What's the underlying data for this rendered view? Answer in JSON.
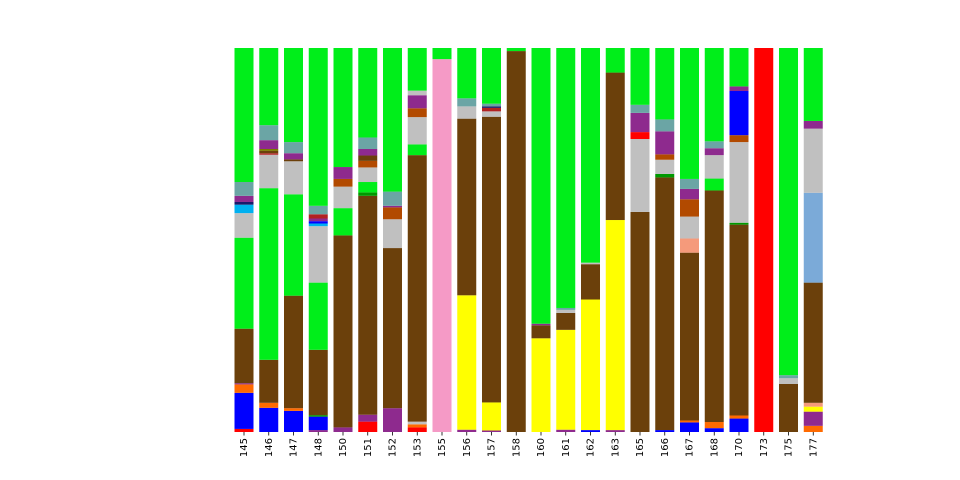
{
  "palette": {
    "lime": "#00EE1A",
    "brown": "#6B400B",
    "blue": "#0000FF",
    "yellow": "#FFFF00",
    "red": "#FF0000",
    "orange": "#FF6A00",
    "purple": "#8E2A8E",
    "silver": "#C0C0C0",
    "teal": "#6BA5A5",
    "rust": "#B24A00",
    "dkred": "#B22222",
    "salmon": "#F59A7B",
    "sky": "#7BAAD8",
    "pink": "#F59AC6",
    "olive": "#7A7A00",
    "cyan": "#00B0F0",
    "navy": "#1A1A6B",
    "green2": "#009900",
    "black": "#222222"
  },
  "chart_data": {
    "type": "bar",
    "stacked": true,
    "normalized": true,
    "ylim": [
      0,
      1
    ],
    "grid": false,
    "legend": "none",
    "title": "",
    "xlabel": "",
    "ylabel": "",
    "categories": [
      "145",
      "146",
      "147",
      "148",
      "150",
      "151",
      "152",
      "153",
      "155",
      "156",
      "157",
      "158",
      "160",
      "161",
      "162",
      "163",
      "165",
      "166",
      "167",
      "168",
      "170",
      "173",
      "175",
      "177"
    ],
    "stacks": [
      [
        [
          "red",
          0.008
        ],
        [
          "blue",
          0.094
        ],
        [
          "orange",
          0.022
        ],
        [
          "purple",
          0.003
        ],
        [
          "brown",
          0.142
        ],
        [
          "lime",
          0.237
        ],
        [
          "silver",
          0.064
        ],
        [
          "cyan",
          0.022
        ],
        [
          "navy",
          0.007
        ],
        [
          "purple",
          0.016
        ],
        [
          "teal",
          0.036
        ],
        [
          "lime",
          0.349
        ]
      ],
      [
        [
          "blue",
          0.063
        ],
        [
          "orange",
          0.013
        ],
        [
          "brown",
          0.112
        ],
        [
          "lime",
          0.447
        ],
        [
          "silver",
          0.087
        ],
        [
          "dkred",
          0.004
        ],
        [
          "brown",
          0.006
        ],
        [
          "olive",
          0.005
        ],
        [
          "purple",
          0.023
        ],
        [
          "teal",
          0.039
        ],
        [
          "lime",
          0.201
        ]
      ],
      [
        [
          "blue",
          0.055
        ],
        [
          "orange",
          0.007
        ],
        [
          "brown",
          0.293
        ],
        [
          "lime",
          0.264
        ],
        [
          "silver",
          0.086
        ],
        [
          "brown",
          0.005
        ],
        [
          "purple",
          0.016
        ],
        [
          "teal",
          0.029
        ],
        [
          "lime",
          0.245
        ]
      ],
      [
        [
          "purple",
          0.005
        ],
        [
          "blue",
          0.035
        ],
        [
          "green2",
          0.004
        ],
        [
          "brown",
          0.17
        ],
        [
          "lime",
          0.175
        ],
        [
          "silver",
          0.147
        ],
        [
          "cyan",
          0.007
        ],
        [
          "blue",
          0.006
        ],
        [
          "purple",
          0.007
        ],
        [
          "dkred",
          0.011
        ],
        [
          "teal",
          0.022
        ],
        [
          "lime",
          0.411
        ]
      ],
      [
        [
          "purple",
          0.012
        ],
        [
          "brown",
          0.5
        ],
        [
          "lime",
          0.071
        ],
        [
          "silver",
          0.056
        ],
        [
          "rust",
          0.02
        ],
        [
          "purple",
          0.031
        ],
        [
          "lime",
          0.31
        ]
      ],
      [
        [
          "red",
          0.027
        ],
        [
          "purple",
          0.018
        ],
        [
          "brown",
          0.57
        ],
        [
          "green2",
          0.009
        ],
        [
          "lime",
          0.027
        ],
        [
          "silver",
          0.038
        ],
        [
          "rust",
          0.017
        ],
        [
          "brown",
          0.014
        ],
        [
          "purple",
          0.017
        ],
        [
          "teal",
          0.03
        ],
        [
          "lime",
          0.233
        ]
      ],
      [
        [
          "purple",
          0.062
        ],
        [
          "brown",
          0.417
        ],
        [
          "silver",
          0.075
        ],
        [
          "rust",
          0.031
        ],
        [
          "purple",
          0.004
        ],
        [
          "teal",
          0.037
        ],
        [
          "lime",
          0.374
        ]
      ],
      [
        [
          "red",
          0.012
        ],
        [
          "orange",
          0.008
        ],
        [
          "silver",
          0.007
        ],
        [
          "brown",
          0.694
        ],
        [
          "lime",
          0.028
        ],
        [
          "silver",
          0.071
        ],
        [
          "rust",
          0.023
        ],
        [
          "purple",
          0.034
        ],
        [
          "silver",
          0.012
        ],
        [
          "lime",
          0.111
        ]
      ],
      [
        [
          "pink",
          0.971
        ],
        [
          "lime",
          0.029
        ]
      ],
      [
        [
          "purple",
          0.006
        ],
        [
          "yellow",
          0.35
        ],
        [
          "brown",
          0.46
        ],
        [
          "silver",
          0.032
        ],
        [
          "teal",
          0.021
        ],
        [
          "lime",
          0.131
        ]
      ],
      [
        [
          "purple",
          0.004
        ],
        [
          "yellow",
          0.073
        ],
        [
          "brown",
          0.744
        ],
        [
          "silver",
          0.014
        ],
        [
          "dkred",
          0.009
        ],
        [
          "navy",
          0.004
        ],
        [
          "teal",
          0.007
        ],
        [
          "lime",
          0.145
        ]
      ],
      [
        [
          "brown",
          0.992
        ],
        [
          "lime",
          0.008
        ]
      ],
      [
        [
          "yellow",
          0.244
        ],
        [
          "brown",
          0.034
        ],
        [
          "purple",
          0.004
        ],
        [
          "lime",
          0.718
        ]
      ],
      [
        [
          "purple",
          0.006
        ],
        [
          "yellow",
          0.26
        ],
        [
          "brown",
          0.044
        ],
        [
          "silver",
          0.008
        ],
        [
          "teal",
          0.005
        ],
        [
          "lime",
          0.677
        ]
      ],
      [
        [
          "blue",
          0.005
        ],
        [
          "yellow",
          0.34
        ],
        [
          "brown",
          0.092
        ],
        [
          "silver",
          0.004
        ],
        [
          "lime",
          0.559
        ]
      ],
      [
        [
          "purple",
          0.005
        ],
        [
          "yellow",
          0.547
        ],
        [
          "brown",
          0.384
        ],
        [
          "lime",
          0.064
        ]
      ],
      [
        [
          "brown",
          0.573
        ],
        [
          "silver",
          0.19
        ],
        [
          "red",
          0.018
        ],
        [
          "purple",
          0.05
        ],
        [
          "teal",
          0.021
        ],
        [
          "lime",
          0.148
        ]
      ],
      [
        [
          "blue",
          0.005
        ],
        [
          "brown",
          0.658
        ],
        [
          "green2",
          0.009
        ],
        [
          "silver",
          0.037
        ],
        [
          "rust",
          0.014
        ],
        [
          "purple",
          0.06
        ],
        [
          "teal",
          0.031
        ],
        [
          "lime",
          0.186
        ]
      ],
      [
        [
          "blue",
          0.025
        ],
        [
          "orange",
          0.005
        ],
        [
          "brown",
          0.437
        ],
        [
          "salmon",
          0.037
        ],
        [
          "silver",
          0.057
        ],
        [
          "rust",
          0.045
        ],
        [
          "purple",
          0.027
        ],
        [
          "teal",
          0.026
        ],
        [
          "lime",
          0.341
        ]
      ],
      [
        [
          "blue",
          0.01
        ],
        [
          "orange",
          0.016
        ],
        [
          "brown",
          0.603
        ],
        [
          "lime",
          0.031
        ],
        [
          "silver",
          0.061
        ],
        [
          "purple",
          0.018
        ],
        [
          "teal",
          0.018
        ],
        [
          "lime",
          0.243
        ]
      ],
      [
        [
          "blue",
          0.035
        ],
        [
          "orange",
          0.008
        ],
        [
          "brown",
          0.497
        ],
        [
          "green2",
          0.005
        ],
        [
          "silver",
          0.21
        ],
        [
          "rust",
          0.018
        ],
        [
          "blue",
          0.115
        ],
        [
          "purple",
          0.012
        ],
        [
          "lime",
          0.1
        ]
      ],
      [
        [
          "red",
          1.0
        ]
      ],
      [
        [
          "brown",
          0.125
        ],
        [
          "silver",
          0.015
        ],
        [
          "teal",
          0.008
        ],
        [
          "lime",
          0.852
        ]
      ],
      [
        [
          "orange",
          0.016
        ],
        [
          "purple",
          0.037
        ],
        [
          "yellow",
          0.013
        ],
        [
          "salmon",
          0.01
        ],
        [
          "brown",
          0.313
        ],
        [
          "sky",
          0.234
        ],
        [
          "silver",
          0.167
        ],
        [
          "purple",
          0.02
        ],
        [
          "lime",
          0.19
        ]
      ]
    ]
  }
}
